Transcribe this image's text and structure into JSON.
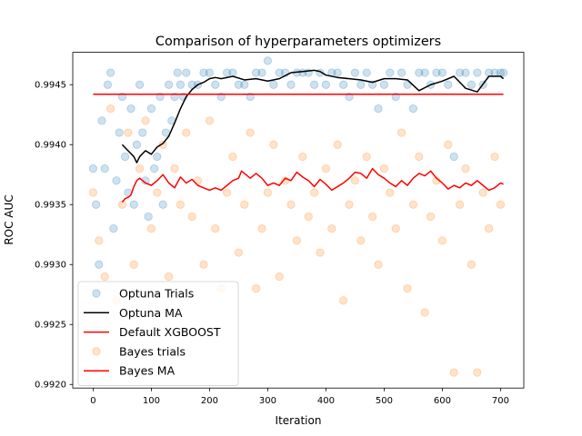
{
  "chart_data": {
    "type": "scatter",
    "title": "Comparison of hyperparameters optimizers",
    "xlabel": "Iteration",
    "ylabel": "ROC AUC",
    "xlim": [
      -35,
      740
    ],
    "ylim": [
      0.99197,
      0.99477
    ],
    "x_ticks": [
      0,
      100,
      200,
      300,
      400,
      500,
      600,
      700
    ],
    "x_tick_labels": [
      "0",
      "100",
      "200",
      "300",
      "400",
      "500",
      "600",
      "700"
    ],
    "y_ticks": [
      0.992,
      0.9925,
      0.993,
      0.9935,
      0.994,
      0.9945
    ],
    "y_tick_labels": [
      "0.9920",
      "0.9925",
      "0.9930",
      "0.9935",
      "0.9940",
      "0.9945"
    ],
    "grid": false,
    "legend_placement": "lower-left",
    "legend": [
      {
        "label": "Optuna Trials",
        "marker": "circle",
        "color": "#1f77b4"
      },
      {
        "label": "Optuna MA",
        "marker": "line",
        "color": "#000000"
      },
      {
        "label": "Default XGBOOST",
        "marker": "line",
        "color": "#ff0000"
      },
      {
        "label": "Bayes trials",
        "marker": "circle",
        "color": "#ff7f0e"
      },
      {
        "label": "Bayes MA",
        "marker": "line",
        "color": "#ff0000"
      }
    ],
    "series": [
      {
        "name": "Optuna Trials",
        "kind": "scatter",
        "color": "#1f77b4",
        "x": [
          0,
          5,
          10,
          15,
          20,
          25,
          30,
          35,
          40,
          45,
          50,
          55,
          60,
          65,
          70,
          75,
          80,
          85,
          90,
          95,
          100,
          105,
          110,
          115,
          120,
          125,
          130,
          135,
          140,
          145,
          150,
          155,
          160,
          170,
          180,
          190,
          200,
          210,
          220,
          230,
          240,
          250,
          260,
          270,
          280,
          290,
          300,
          310,
          320,
          330,
          340,
          350,
          360,
          370,
          380,
          390,
          400,
          410,
          420,
          430,
          440,
          450,
          460,
          470,
          480,
          490,
          500,
          510,
          520,
          530,
          540,
          550,
          560,
          570,
          580,
          590,
          600,
          610,
          620,
          630,
          640,
          650,
          660,
          670,
          680,
          690,
          700,
          705
        ],
        "y": [
          0.9938,
          0.9935,
          0.993,
          0.9942,
          0.9938,
          0.9945,
          0.9946,
          0.9933,
          0.9937,
          0.9941,
          0.9944,
          0.9939,
          0.9936,
          0.9943,
          0.9935,
          0.994,
          0.9945,
          0.9941,
          0.9937,
          0.9934,
          0.9943,
          0.9938,
          0.9939,
          0.9944,
          0.9935,
          0.9941,
          0.9945,
          0.9942,
          0.9944,
          0.9946,
          0.9945,
          0.9944,
          0.9946,
          0.9945,
          0.9945,
          0.9946,
          0.9946,
          0.9945,
          0.9944,
          0.9946,
          0.9946,
          0.9945,
          0.9945,
          0.9944,
          0.9946,
          0.9946,
          0.9947,
          0.9945,
          0.9946,
          0.9946,
          0.9945,
          0.9946,
          0.9946,
          0.9946,
          0.9945,
          0.9946,
          0.9945,
          0.9946,
          0.9946,
          0.9945,
          0.9944,
          0.9946,
          0.9945,
          0.9946,
          0.9945,
          0.9943,
          0.9945,
          0.9946,
          0.9944,
          0.9946,
          0.9945,
          0.9943,
          0.9946,
          0.9946,
          0.9945,
          0.9946,
          0.9946,
          0.9945,
          0.9939,
          0.9946,
          0.9946,
          0.9945,
          0.9946,
          0.9945,
          0.9946,
          0.9946,
          0.9946,
          0.9946
        ]
      },
      {
        "name": "Optuna MA",
        "kind": "line",
        "color": "#000000",
        "x": [
          50,
          60,
          70,
          75,
          80,
          90,
          100,
          110,
          120,
          130,
          140,
          150,
          160,
          170,
          180,
          190,
          200,
          210,
          220,
          240,
          260,
          280,
          300,
          320,
          340,
          360,
          380,
          390,
          400,
          420,
          440,
          460,
          480,
          500,
          520,
          540,
          560,
          580,
          600,
          620,
          640,
          660,
          680,
          700,
          705
        ],
        "y": [
          0.994,
          0.99395,
          0.9939,
          0.99385,
          0.9939,
          0.99395,
          0.99392,
          0.99398,
          0.99401,
          0.99407,
          0.99418,
          0.9943,
          0.9944,
          0.99446,
          0.9945,
          0.99452,
          0.99455,
          0.99456,
          0.99455,
          0.99457,
          0.99454,
          0.99455,
          0.99453,
          0.99455,
          0.9946,
          0.99461,
          0.99462,
          0.99461,
          0.99458,
          0.99456,
          0.99455,
          0.99454,
          0.99452,
          0.99455,
          0.99455,
          0.99454,
          0.99445,
          0.9945,
          0.99453,
          0.99457,
          0.99447,
          0.99444,
          0.99457,
          0.99457,
          0.99455
        ]
      },
      {
        "name": "Default XGBOOST",
        "kind": "line",
        "color": "#ff0000",
        "x": [
          0,
          705
        ],
        "y": [
          0.99442,
          0.99442
        ]
      },
      {
        "name": "Bayes trials",
        "kind": "scatter",
        "color": "#ff7f0e",
        "x": [
          0,
          10,
          20,
          30,
          40,
          50,
          60,
          70,
          80,
          90,
          100,
          110,
          120,
          130,
          140,
          150,
          160,
          170,
          180,
          190,
          200,
          210,
          220,
          230,
          240,
          250,
          260,
          270,
          280,
          290,
          300,
          310,
          320,
          330,
          340,
          350,
          360,
          370,
          380,
          390,
          400,
          410,
          420,
          430,
          440,
          450,
          460,
          470,
          480,
          490,
          500,
          510,
          520,
          530,
          540,
          550,
          560,
          570,
          580,
          590,
          600,
          610,
          620,
          630,
          640,
          650,
          660,
          670,
          680,
          690,
          700
        ],
        "y": [
          0.9936,
          0.9932,
          0.9929,
          0.9943,
          0.9927,
          0.9935,
          0.9941,
          0.993,
          0.9938,
          0.9942,
          0.9933,
          0.9936,
          0.994,
          0.9929,
          0.9938,
          0.9935,
          0.9941,
          0.9934,
          0.9937,
          0.993,
          0.9942,
          0.9933,
          0.9928,
          0.9936,
          0.9939,
          0.9931,
          0.9935,
          0.9941,
          0.9928,
          0.9933,
          0.9936,
          0.994,
          0.9929,
          0.9937,
          0.9935,
          0.9932,
          0.9939,
          0.9934,
          0.9936,
          0.9931,
          0.9938,
          0.9933,
          0.994,
          0.9927,
          0.9935,
          0.9937,
          0.9932,
          0.9939,
          0.9934,
          0.993,
          0.9938,
          0.9936,
          0.9933,
          0.9941,
          0.9928,
          0.9935,
          0.9939,
          0.9926,
          0.9934,
          0.9937,
          0.9932,
          0.994,
          0.9921,
          0.9935,
          0.9938,
          0.993,
          0.9921,
          0.9936,
          0.9933,
          0.9939,
          0.9935
        ]
      },
      {
        "name": "Bayes MA",
        "kind": "line",
        "color": "#ff0000",
        "x": [
          50,
          55,
          60,
          65,
          70,
          75,
          80,
          90,
          100,
          110,
          120,
          130,
          140,
          150,
          160,
          170,
          180,
          190,
          200,
          210,
          220,
          230,
          240,
          250,
          255,
          260,
          270,
          280,
          290,
          300,
          310,
          320,
          330,
          340,
          350,
          360,
          370,
          380,
          390,
          400,
          410,
          420,
          430,
          440,
          450,
          460,
          470,
          480,
          490,
          500,
          510,
          520,
          530,
          540,
          550,
          560,
          570,
          580,
          590,
          600,
          610,
          620,
          630,
          640,
          650,
          660,
          670,
          680,
          690,
          700,
          705
        ],
        "y": [
          0.99352,
          0.99355,
          0.99356,
          0.99358,
          0.99365,
          0.9937,
          0.99372,
          0.99368,
          0.99366,
          0.9937,
          0.99375,
          0.99368,
          0.99364,
          0.99373,
          0.99368,
          0.99371,
          0.99366,
          0.99364,
          0.99362,
          0.99364,
          0.99362,
          0.99366,
          0.9937,
          0.99372,
          0.99378,
          0.99376,
          0.99372,
          0.99376,
          0.99372,
          0.99366,
          0.99368,
          0.99366,
          0.99372,
          0.9937,
          0.99377,
          0.99373,
          0.9937,
          0.99365,
          0.99371,
          0.99367,
          0.99362,
          0.99365,
          0.99368,
          0.99372,
          0.99377,
          0.99376,
          0.99372,
          0.9938,
          0.99375,
          0.99372,
          0.99368,
          0.99365,
          0.9937,
          0.99366,
          0.99372,
          0.99376,
          0.99374,
          0.99378,
          0.99372,
          0.99368,
          0.99363,
          0.99366,
          0.99364,
          0.99368,
          0.99366,
          0.9937,
          0.99366,
          0.99362,
          0.99364,
          0.99368,
          0.99367
        ]
      }
    ]
  }
}
